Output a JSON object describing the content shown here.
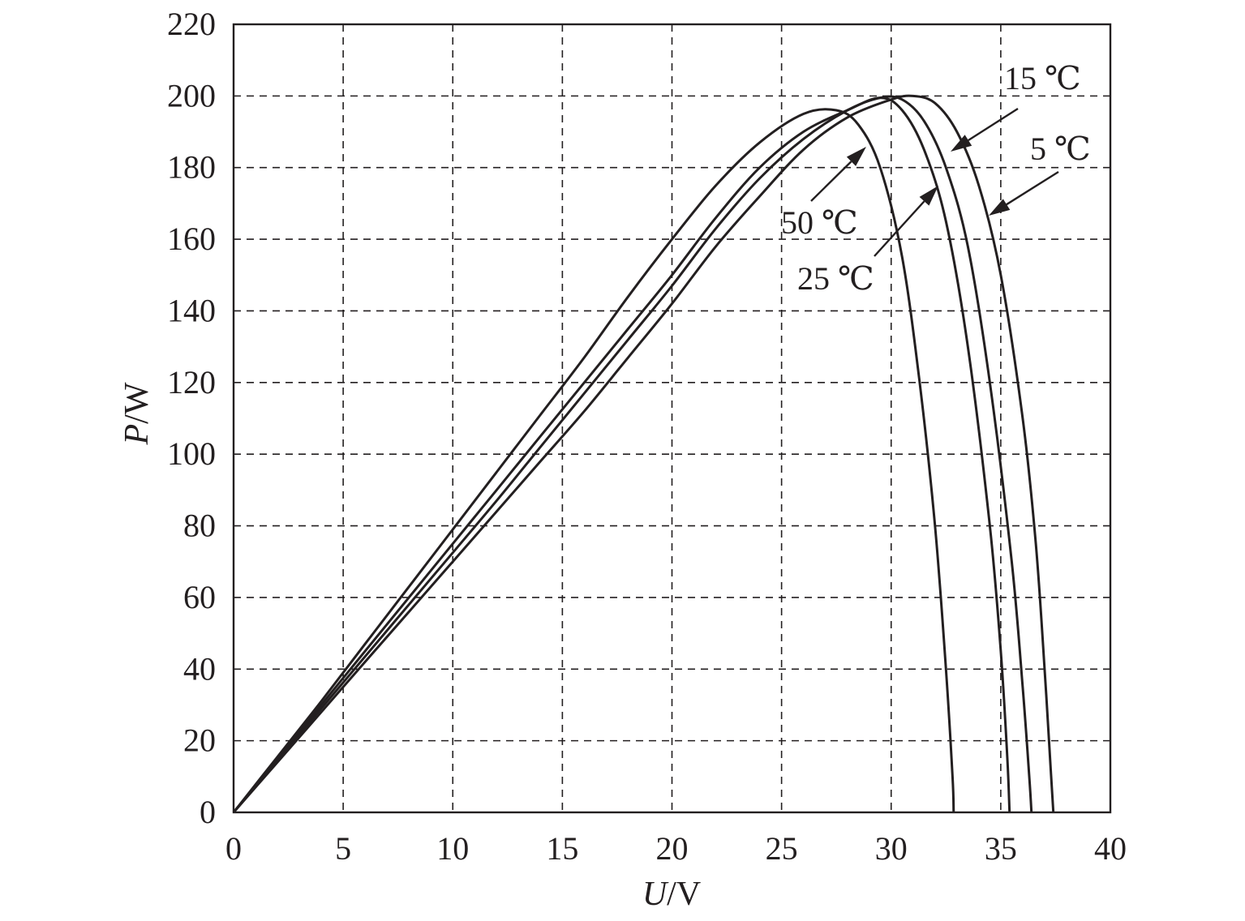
{
  "chart_data": {
    "type": "line",
    "title": "",
    "xlabel": {
      "var": "U",
      "unit": "/V"
    },
    "ylabel": {
      "var": "P",
      "unit": "/W"
    },
    "xlim": [
      0,
      40
    ],
    "ylim": [
      0,
      220
    ],
    "xticks": [
      0,
      5,
      10,
      15,
      20,
      25,
      30,
      35,
      40
    ],
    "yticks": [
      0,
      20,
      40,
      60,
      80,
      100,
      120,
      140,
      160,
      180,
      200,
      220
    ],
    "grid": true,
    "series": [
      {
        "name": "5 ℃",
        "points": [
          [
            0,
            0
          ],
          [
            2,
            14
          ],
          [
            4,
            28
          ],
          [
            6,
            42
          ],
          [
            8,
            56
          ],
          [
            10,
            70
          ],
          [
            12,
            84
          ],
          [
            14,
            98
          ],
          [
            16,
            112
          ],
          [
            18,
            127
          ],
          [
            20,
            142
          ],
          [
            22,
            158
          ],
          [
            24,
            172
          ],
          [
            26,
            185
          ],
          [
            28,
            194
          ],
          [
            30,
            199
          ],
          [
            31,
            200
          ],
          [
            32,
            198
          ],
          [
            33,
            190
          ],
          [
            34,
            175
          ],
          [
            35,
            150
          ],
          [
            36,
            110
          ],
          [
            36.6,
            75
          ],
          [
            37,
            40
          ],
          [
            37.3,
            10
          ],
          [
            37.4,
            0
          ]
        ]
      },
      {
        "name": "15 ℃",
        "points": [
          [
            0,
            0
          ],
          [
            2,
            14.5
          ],
          [
            4,
            29
          ],
          [
            6,
            43.5
          ],
          [
            8,
            58
          ],
          [
            10,
            72.5
          ],
          [
            12,
            87
          ],
          [
            14,
            102
          ],
          [
            16,
            117
          ],
          [
            18,
            132
          ],
          [
            20,
            147
          ],
          [
            22,
            163
          ],
          [
            24,
            177
          ],
          [
            26,
            188
          ],
          [
            28,
            196
          ],
          [
            29.5,
            199.5
          ],
          [
            30.5,
            199
          ],
          [
            31.5,
            193
          ],
          [
            32.5,
            180
          ],
          [
            33.5,
            158
          ],
          [
            34.5,
            120
          ],
          [
            35.5,
            70
          ],
          [
            36,
            35
          ],
          [
            36.3,
            10
          ],
          [
            36.4,
            0
          ]
        ]
      },
      {
        "name": "25 ℃",
        "points": [
          [
            0,
            0
          ],
          [
            2,
            15
          ],
          [
            4,
            30
          ],
          [
            6,
            45
          ],
          [
            8,
            60
          ],
          [
            10,
            75
          ],
          [
            12,
            90
          ],
          [
            14,
            105
          ],
          [
            16,
            120
          ],
          [
            18,
            135
          ],
          [
            20,
            150
          ],
          [
            22,
            166
          ],
          [
            24,
            180
          ],
          [
            26,
            190
          ],
          [
            28,
            196
          ],
          [
            29.5,
            199.5
          ],
          [
            30.5,
            196
          ],
          [
            31.5,
            185
          ],
          [
            32.5,
            165
          ],
          [
            33.5,
            130
          ],
          [
            34.5,
            80
          ],
          [
            35,
            45
          ],
          [
            35.3,
            15
          ],
          [
            35.4,
            0
          ]
        ]
      },
      {
        "name": "50 ℃",
        "points": [
          [
            0,
            0
          ],
          [
            2,
            15.5
          ],
          [
            4,
            31
          ],
          [
            6,
            47
          ],
          [
            8,
            63
          ],
          [
            10,
            79
          ],
          [
            12,
            95
          ],
          [
            14,
            111
          ],
          [
            16,
            127
          ],
          [
            18,
            144
          ],
          [
            20,
            160
          ],
          [
            22,
            175
          ],
          [
            24,
            187
          ],
          [
            26,
            195
          ],
          [
            27.5,
            196
          ],
          [
            28.5,
            192
          ],
          [
            29.5,
            180
          ],
          [
            30.5,
            155
          ],
          [
            31.3,
            120
          ],
          [
            32,
            80
          ],
          [
            32.5,
            40
          ],
          [
            32.8,
            10
          ],
          [
            32.85,
            0
          ]
        ]
      }
    ],
    "annotations": [
      {
        "label": "15 ℃",
        "series": "15 ℃"
      },
      {
        "label": "5 ℃",
        "series": "5 ℃"
      },
      {
        "label": "50 ℃",
        "series": "50 ℃"
      },
      {
        "label": "25 ℃",
        "series": "25 ℃"
      }
    ]
  }
}
